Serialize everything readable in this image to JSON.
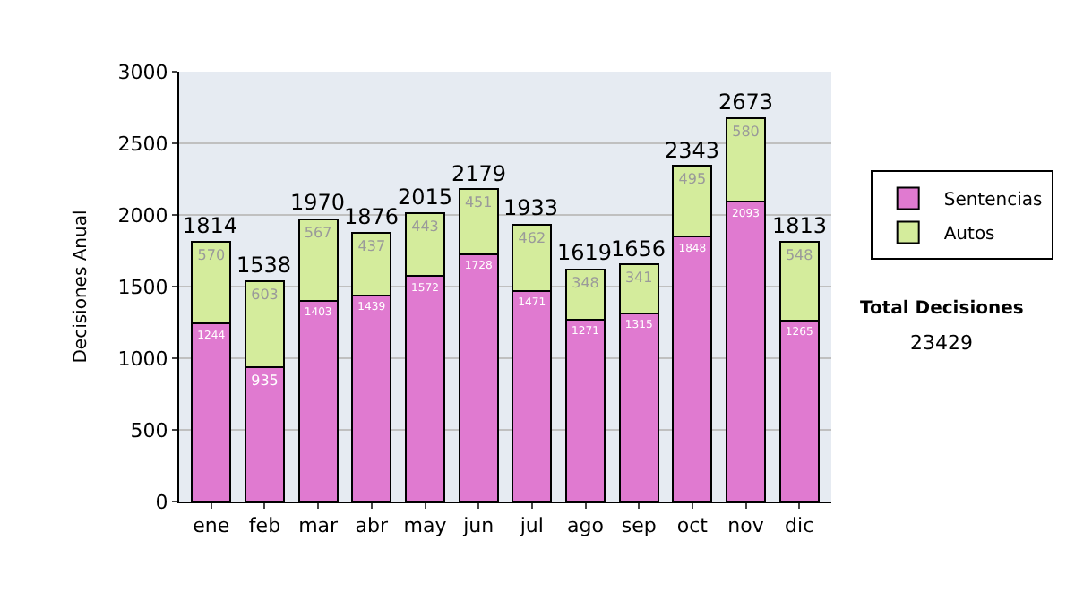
{
  "chart_data": {
    "type": "bar",
    "stacked": true,
    "ylabel": "Decisiones Anual",
    "categories": [
      "ene",
      "feb",
      "mar",
      "abr",
      "may",
      "jun",
      "jul",
      "ago",
      "sep",
      "oct",
      "nov",
      "dic"
    ],
    "series": [
      {
        "name": "Sentencias",
        "color": "#e07ad0",
        "values": [
          1244,
          935,
          1403,
          1439,
          1572,
          1728,
          1471,
          1271,
          1315,
          1848,
          2093,
          1265
        ]
      },
      {
        "name": "Autos",
        "color": "#d4ec9c",
        "values": [
          570,
          603,
          567,
          437,
          443,
          451,
          462,
          348,
          341,
          495,
          580,
          548
        ]
      }
    ],
    "totals": [
      "1814",
      "1538",
      "1970",
      "1876",
      "2015",
      "2179",
      "1933",
      "1619",
      "1656",
      "2343",
      "2673",
      "1813"
    ],
    "data_labels": true,
    "ylim": [
      0,
      3000
    ],
    "yticks": [
      0,
      500,
      1000,
      1500,
      2000,
      2500,
      3000
    ],
    "grid": "y",
    "legend": "right",
    "annotations": [
      "Total Decisiones",
      "23429"
    ]
  }
}
